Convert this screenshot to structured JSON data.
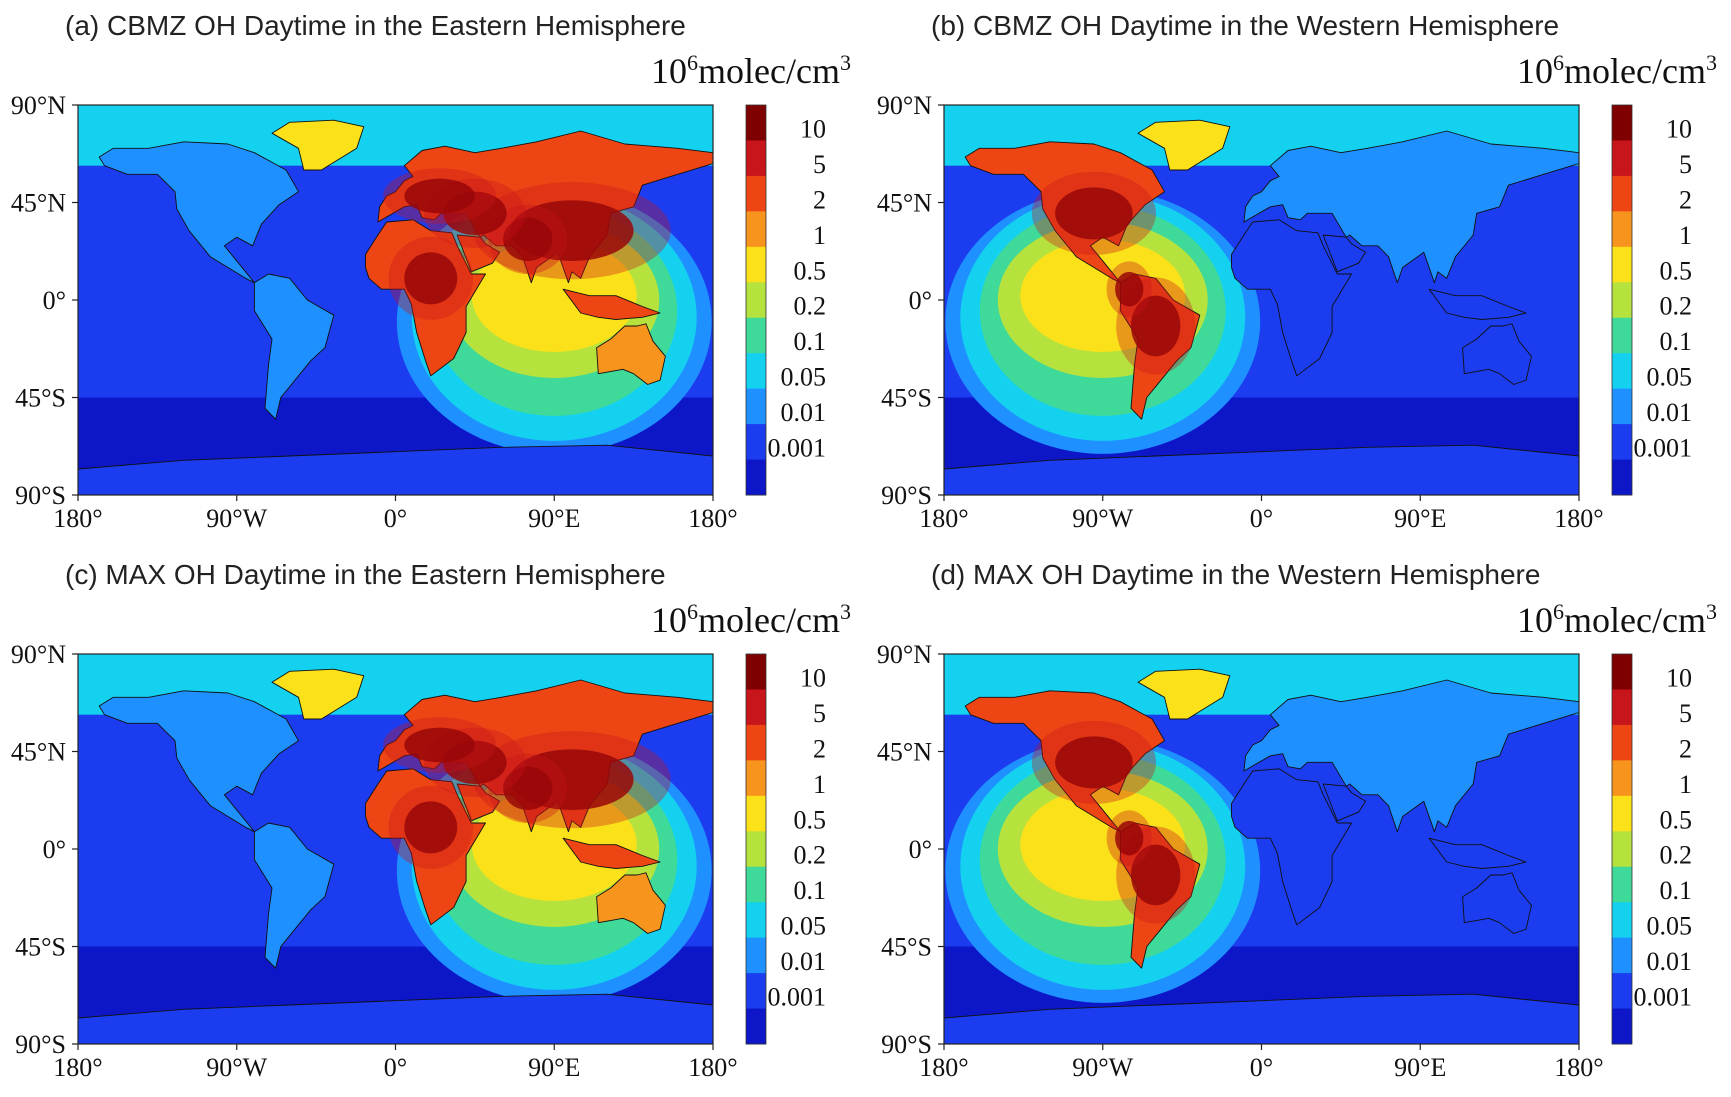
{
  "figure": {
    "unit_base": "10",
    "unit_exp": "6",
    "unit_rest": "molec/cm",
    "unit_pow": "3",
    "lat_ticks": [
      "90°N",
      "45°N",
      "0°",
      "45°S",
      "90°S"
    ],
    "lon_ticks": [
      "180°",
      "90°W",
      "0°",
      "90°E",
      "180°"
    ],
    "colorbar_levels": [
      "10",
      "5",
      "2",
      "1",
      "0.5",
      "0.2",
      "0.1",
      "0.05",
      "0.01",
      "0.001"
    ],
    "colorbar_colors": [
      "#7f0000",
      "#c8141b",
      "#ee4515",
      "#f7941d",
      "#fbe11a",
      "#b6e23d",
      "#3fd99a",
      "#14d1f0",
      "#1e90ff",
      "#1c3cf0",
      "#0d17c8"
    ]
  },
  "panels": [
    {
      "title": "(a) CBMZ OH Daytime in the Eastern Hemisphere",
      "sunlit": "east",
      "model": "CBMZ"
    },
    {
      "title": "(b) CBMZ OH Daytime in the Western Hemisphere",
      "sunlit": "west",
      "model": "CBMZ"
    },
    {
      "title": "(c) MAX OH Daytime in the Eastern Hemisphere",
      "sunlit": "east",
      "model": "MAX"
    },
    {
      "title": "(d) MAX OH Daytime in the Western Hemisphere",
      "sunlit": "west",
      "model": "MAX"
    }
  ]
}
